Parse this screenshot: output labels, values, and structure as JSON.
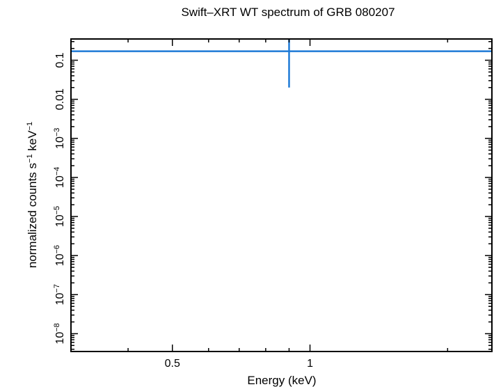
{
  "chart_data": {
    "type": "line",
    "title": "Swift–XRT WT spectrum of GRB 080207",
    "xlabel": "Energy (keV)",
    "ylabel": {
      "base": "normalized counts s",
      "sup1": "−1",
      "mid": " keV",
      "sup2": "−1"
    },
    "xscale": "log",
    "yscale": "log",
    "xlim": [
      0.3,
      2.5
    ],
    "ylim": [
      3.5e-09,
      0.35
    ],
    "xticks": [
      {
        "value": 0.5,
        "label": "0.5"
      },
      {
        "value": 1,
        "label": "1"
      }
    ],
    "yticks": [
      {
        "value": 0.1,
        "label": "0.1"
      },
      {
        "value": 0.01,
        "label": "0.01"
      },
      {
        "value": 0.001,
        "base": "10",
        "exp": "−3"
      },
      {
        "value": 0.0001,
        "base": "10",
        "exp": "−4"
      },
      {
        "value": 1e-05,
        "base": "10",
        "exp": "−5"
      },
      {
        "value": 1e-06,
        "base": "10",
        "exp": "−6"
      },
      {
        "value": 1e-07,
        "base": "10",
        "exp": "−7"
      },
      {
        "value": 1e-08,
        "base": "10",
        "exp": "−8"
      }
    ],
    "series": [
      {
        "color": "#1e7ad6",
        "points": [
          {
            "x": 0.3,
            "y": 0.17
          },
          {
            "x": 2.5,
            "y": 0.17
          }
        ],
        "error_bar": {
          "x": 0.9,
          "y": 0.17,
          "y_low": 0.02,
          "y_high": 0.35
        }
      }
    ]
  }
}
